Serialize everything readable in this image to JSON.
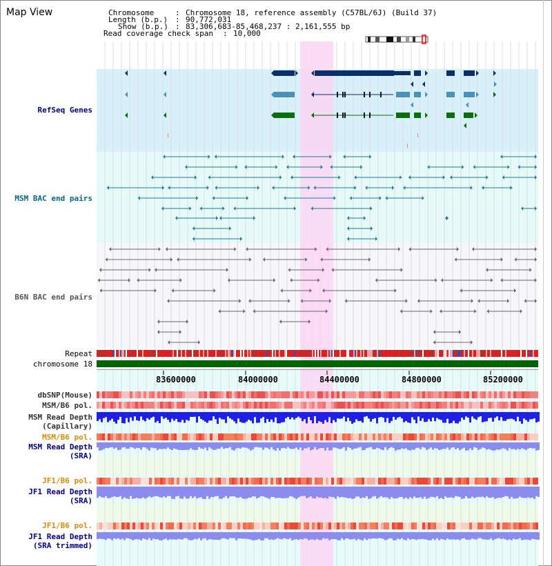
{
  "title": "Map View",
  "info": {
    "chromosome_label": "Chromosome",
    "chromosome_value": "Chromosome 18, reference assembly (C57BL/6J) (Build 37)",
    "length_label": "Length (b.p.)",
    "length_value": "90,772,031",
    "show_label": "Show (b.p.)",
    "show_value": "83,306,683-85,468,237 : 2,161,555 bp",
    "coverage_label": "Read coverage check span",
    "coverage_value": "10,000"
  },
  "tracks": {
    "refseq": "RefSeq Genes",
    "msm_bac": "MSM BAC end pairs",
    "b6n_bac": "B6N BAC end pairs",
    "repeat": "Repeat",
    "chromosome": "chromosome 18",
    "dbsnp": "dbSNP(Mouse)",
    "msm_b6_pol": "MSM/B6 pol.",
    "msm_depth_cap_1": "MSM Read Depth",
    "msm_depth_cap_2": "(Capillary)",
    "msm_b6_pol2": "MSM/B6 pol.",
    "msm_depth_sra_1": "MSM Read Depth",
    "msm_depth_sra_2": "(SRA)",
    "jf1_b6_pol": "JF1/B6 pol.",
    "jf1_depth_sra_1": "JF1 Read Depth",
    "jf1_depth_sra_2": "(SRA)",
    "jf1_b6_pol2": "JF1/B6 pol.",
    "jf1_depth_trim_1": "JF1 Read Depth",
    "jf1_depth_trim_2": "(SRA trimmed)"
  },
  "ruler": {
    "ticks": [
      "83600000",
      "84000000",
      "84400000",
      "84800000",
      "85200000"
    ]
  },
  "colors": {
    "refseq_bg": "#d7f0fa",
    "msm_bg": "#e6fafa",
    "b6n_bg": "#f6f6fb",
    "highlight": "#fbd6f3",
    "gene_dark": "#0a2f6b",
    "gene_mid": "#4a90b8",
    "gene_green": "#0a6e0a",
    "bac_teal": "#1e7a96",
    "bac_gray": "#666666",
    "chrom_green": "#006400",
    "depth_blue": "#1f1fe8",
    "depth_lilac": "#8c8cf0",
    "label_navy": "#00008b",
    "label_orange": "#d98c00",
    "label_teal": "#006a80"
  }
}
